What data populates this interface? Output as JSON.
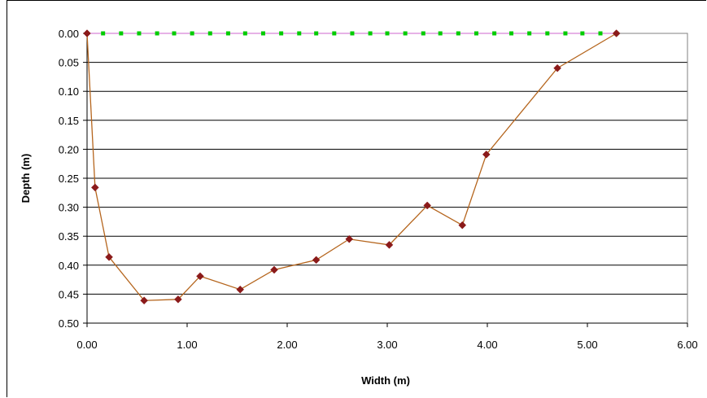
{
  "chart_data": {
    "type": "line",
    "xlabel": "Width (m)",
    "ylabel": "Depth (m)",
    "xlim": [
      0,
      6
    ],
    "ylim": [
      0,
      0.5
    ],
    "y_reversed": true,
    "x_ticks": [
      "0.00",
      "1.00",
      "2.00",
      "3.00",
      "4.00",
      "5.00",
      "6.00"
    ],
    "y_ticks": [
      "0.00",
      "0.05",
      "0.10",
      "0.15",
      "0.20",
      "0.25",
      "0.30",
      "0.35",
      "0.40",
      "0.45",
      "0.50"
    ],
    "grid": "horizontal",
    "legend": "none",
    "series": [
      {
        "color": "#8B1A1A",
        "line_color": "#B5651D",
        "marker": "diamond",
        "x": [
          0.0,
          0.08,
          0.22,
          0.57,
          0.91,
          1.13,
          1.53,
          1.87,
          2.29,
          2.62,
          3.02,
          3.4,
          3.75,
          3.99,
          4.7,
          5.29
        ],
        "y": [
          0.0,
          0.266,
          0.386,
          0.461,
          0.459,
          0.419,
          0.442,
          0.408,
          0.391,
          0.355,
          0.365,
          0.297,
          0.331,
          0.209,
          0.06,
          0.0
        ]
      },
      {
        "color": "#00CC00",
        "line_color": "#CC66CC",
        "marker": "square",
        "style": "dashed",
        "x": [
          0.0,
          0.16,
          0.34,
          0.52,
          0.7,
          0.87,
          1.05,
          1.23,
          1.41,
          1.58,
          1.76,
          1.94,
          2.12,
          2.29,
          2.47,
          2.65,
          2.83,
          3.0,
          3.18,
          3.36,
          3.53,
          3.71,
          3.89,
          4.07,
          4.24,
          4.42,
          4.6,
          4.78,
          4.95,
          5.13,
          5.29
        ],
        "y": [
          0,
          0,
          0,
          0,
          0,
          0,
          0,
          0,
          0,
          0,
          0,
          0,
          0,
          0,
          0,
          0,
          0,
          0,
          0,
          0,
          0,
          0,
          0,
          0,
          0,
          0,
          0,
          0,
          0,
          0,
          0
        ]
      }
    ]
  }
}
